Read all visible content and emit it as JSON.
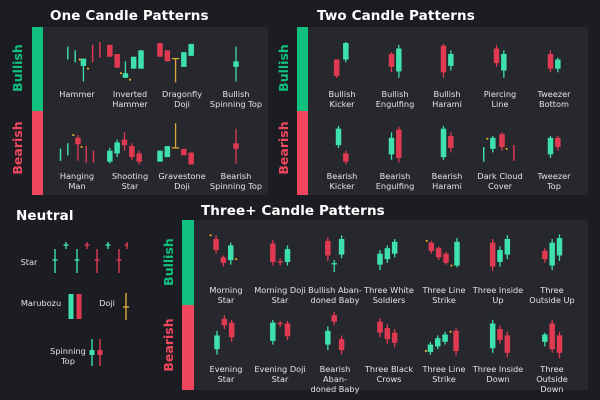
{
  "colors": {
    "bullish": "#10c07f",
    "bearish": "#f0475e",
    "candle_up": "#3ee0ac",
    "candle_down": "#e03a52",
    "doji": "#d9a93a",
    "background": "#1c1d22",
    "panel": "#26282d"
  },
  "side_labels": {
    "bullish": "Bullish",
    "bearish": "Bearish"
  },
  "one_candle": {
    "title": "One Candle Patterns",
    "bullish": [
      {
        "label": "Hammer",
        "icon": "hammer-pattern"
      },
      {
        "label": "Inverted\nHammer",
        "icon": "inverted-hammer-pattern"
      },
      {
        "label": "Dragonfly\nDoji",
        "icon": "dragonfly-doji-pattern"
      },
      {
        "label": "Bullish\nSpinning Top",
        "icon": "bullish-spinning-top-pattern"
      }
    ],
    "bearish": [
      {
        "label": "Hanging\nMan",
        "icon": "hanging-man-pattern"
      },
      {
        "label": "Shooting\nStar",
        "icon": "shooting-star-pattern"
      },
      {
        "label": "Gravestone\nDoji",
        "icon": "gravestone-doji-pattern"
      },
      {
        "label": "Bearish\nSpinning Top",
        "icon": "bearish-spinning-top-pattern"
      }
    ]
  },
  "two_candle": {
    "title": "Two Candle Patterns",
    "bullish": [
      {
        "label": "Bullish\nKicker",
        "icon": "bullish-kicker-pattern"
      },
      {
        "label": "Bullish\nEngulfing",
        "icon": "bullish-engulfing-pattern"
      },
      {
        "label": "Bullish\nHarami",
        "icon": "bullish-harami-pattern"
      },
      {
        "label": "Piercing\nLine",
        "icon": "piercing-line-pattern"
      },
      {
        "label": "Tweezer\nBottom",
        "icon": "tweezer-bottom-pattern"
      }
    ],
    "bearish": [
      {
        "label": "Bearish\nKicker",
        "icon": "bearish-kicker-pattern"
      },
      {
        "label": "Bearish\nEngulfing",
        "icon": "bearish-engulfing-pattern"
      },
      {
        "label": "Bearish\nHarami",
        "icon": "bearish-harami-pattern"
      },
      {
        "label": "Dark Cloud\nCover",
        "icon": "dark-cloud-cover-pattern"
      },
      {
        "label": "Tweezer\nTop",
        "icon": "tweezer-top-pattern"
      }
    ]
  },
  "neutral": {
    "title": "Neutral",
    "items": [
      {
        "label": "Star",
        "icon": "star-pattern"
      },
      {
        "label": "Marubozu",
        "icon": "marubozu-pattern"
      },
      {
        "label": "Doji",
        "icon": "doji-pattern"
      },
      {
        "label": "Spinning\nTop",
        "icon": "spinning-top-pattern"
      }
    ]
  },
  "three_candle": {
    "title": "Three+ Candle Patterns",
    "bullish": [
      {
        "label": "Morning\nStar",
        "icon": "morning-star-pattern"
      },
      {
        "label": "Morning Doji\nStar",
        "icon": "morning-doji-star-pattern"
      },
      {
        "label": "Bullish Aban-\ndoned Baby",
        "icon": "bullish-abandoned-baby-pattern"
      },
      {
        "label": "Three White\nSoldiers",
        "icon": "three-white-soldiers-pattern"
      },
      {
        "label": "Three Line\nStrike",
        "icon": "three-line-strike-bullish-pattern"
      },
      {
        "label": "Three Inside\nUp",
        "icon": "three-inside-up-pattern"
      },
      {
        "label": "Three\nOutside Up",
        "icon": "three-outside-up-pattern"
      }
    ],
    "bearish": [
      {
        "label": "Evening\nStar",
        "icon": "evening-star-pattern"
      },
      {
        "label": "Evening Doji\nStar",
        "icon": "evening-doji-star-pattern"
      },
      {
        "label": "Bearish Aban-\ndoned Baby",
        "icon": "bearish-abandoned-baby-pattern"
      },
      {
        "label": "Three Black\nCrows",
        "icon": "three-black-crows-pattern"
      },
      {
        "label": "Three Line\nStrike",
        "icon": "three-line-strike-bearish-pattern"
      },
      {
        "label": "Three Inside\nDown",
        "icon": "three-inside-down-pattern"
      },
      {
        "label": "Three Outside\nDown",
        "icon": "three-outside-down-pattern"
      }
    ]
  }
}
